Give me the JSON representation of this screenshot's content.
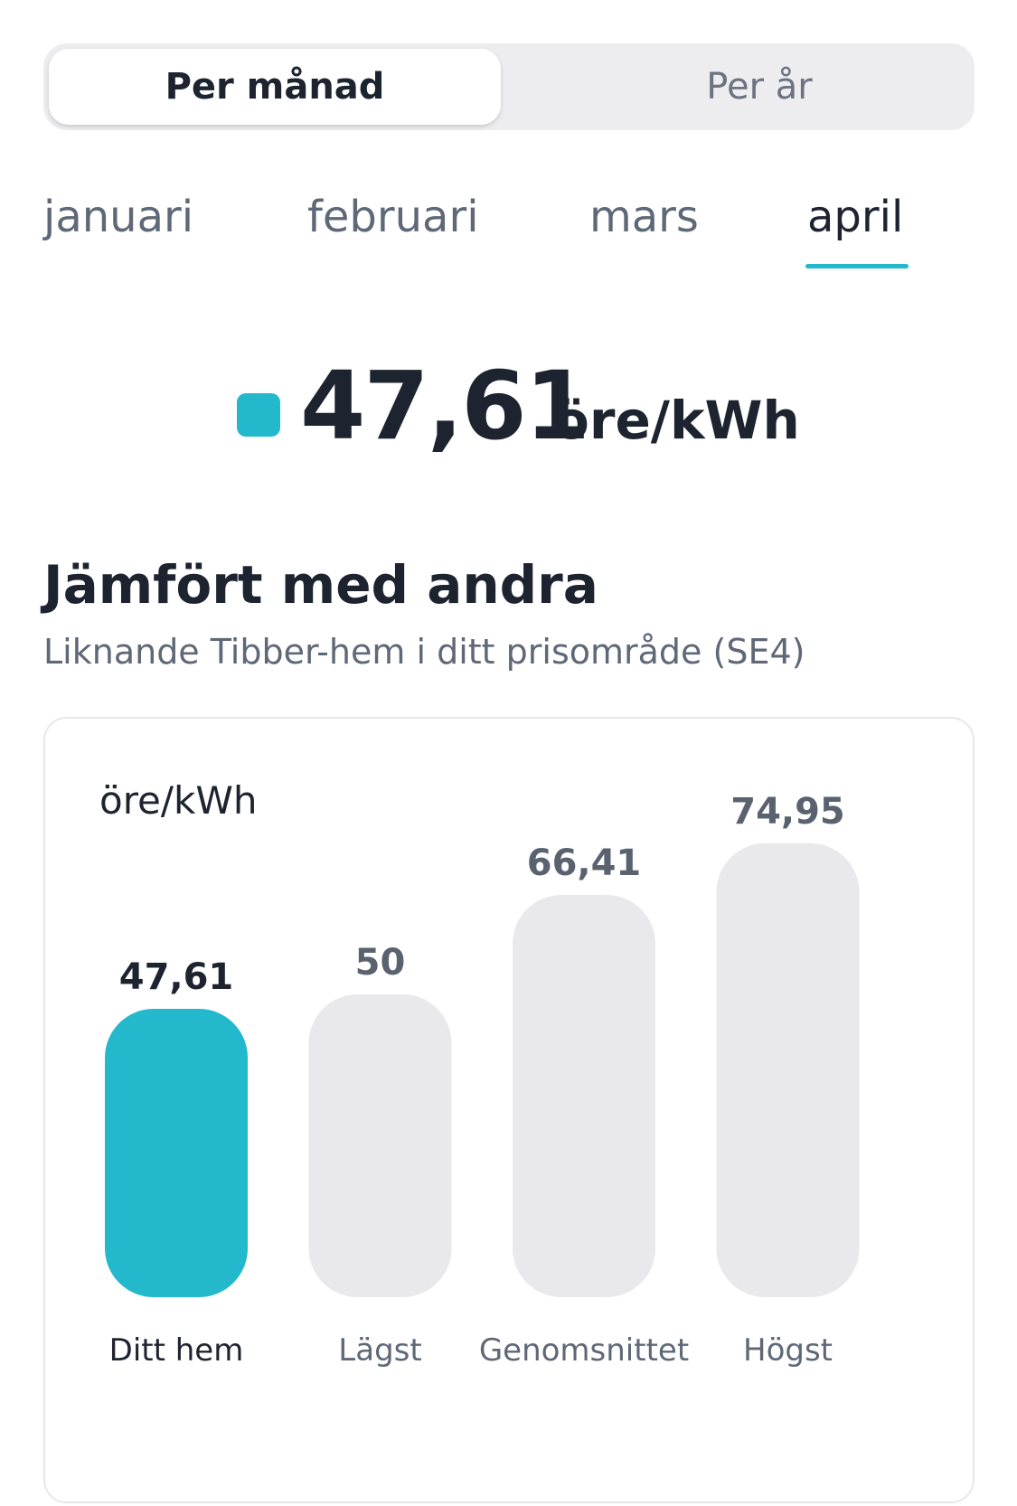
{
  "period_toggle": {
    "per_month": "Per månad",
    "per_year": "Per år",
    "selected": "Per månad"
  },
  "month_tabs": [
    {
      "label": "januari",
      "selected": false
    },
    {
      "label": "februari",
      "selected": false
    },
    {
      "label": "mars",
      "selected": false
    },
    {
      "label": "april",
      "selected": true
    }
  ],
  "summary": {
    "value": "47,61",
    "unit": "öre/kWh"
  },
  "comparison": {
    "title": "Jämfört med andra",
    "subtitle": "Liknande Tibber-hem i ditt prisområde (SE4)"
  },
  "colors": {
    "accent": "#23b8cc",
    "bar_neutral": "#e9e9eb",
    "text_dark": "#1d2430",
    "text_muted": "#5f6877"
  },
  "chart_data": {
    "type": "bar",
    "ylabel": "öre/kWh",
    "categories": [
      "Ditt hem",
      "Lägst",
      "Genomsnittet",
      "Högst"
    ],
    "values": [
      47.61,
      50,
      66.41,
      74.95
    ],
    "value_labels": [
      "47,61",
      "50",
      "66,41",
      "74,95"
    ],
    "highlight_index": 0,
    "grid": false
  }
}
